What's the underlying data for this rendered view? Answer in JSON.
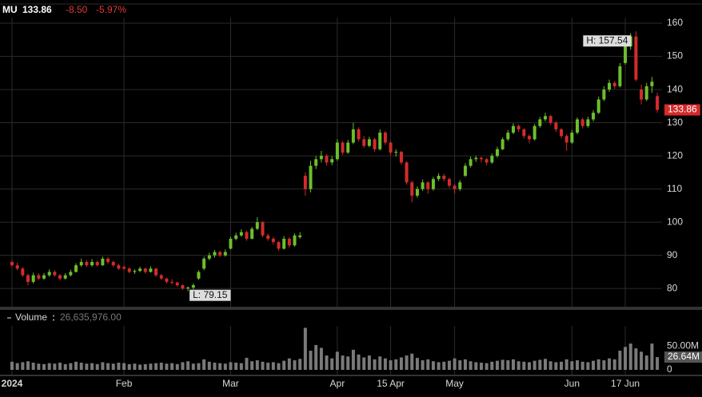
{
  "header": {
    "symbol": "MU",
    "price": "133.86",
    "change": "-8.50",
    "change_pct": "-5.97%"
  },
  "chart_data": [
    {
      "type": "candlestick",
      "categories": [
        "2024",
        null,
        null,
        null,
        null,
        null,
        null,
        null,
        null,
        null,
        null,
        null,
        null,
        null,
        null,
        null,
        null,
        null,
        null,
        null,
        null,
        "Feb",
        null,
        null,
        null,
        null,
        null,
        null,
        null,
        null,
        null,
        null,
        null,
        null,
        null,
        null,
        null,
        null,
        null,
        null,
        null,
        "Mar",
        null,
        null,
        null,
        null,
        null,
        null,
        null,
        null,
        null,
        null,
        null,
        null,
        null,
        null,
        null,
        null,
        null,
        null,
        null,
        "Apr",
        null,
        null,
        null,
        null,
        null,
        null,
        null,
        null,
        null,
        "15 Apr",
        null,
        null,
        null,
        null,
        null,
        null,
        null,
        null,
        null,
        null,
        null,
        "May",
        null,
        null,
        null,
        null,
        null,
        null,
        null,
        null,
        null,
        null,
        null,
        null,
        null,
        null,
        null,
        null,
        null,
        null,
        null,
        null,
        null,
        "Jun",
        null,
        null,
        null,
        null,
        null,
        null,
        null,
        null,
        null,
        "17 Jun",
        null,
        null,
        null,
        null,
        null,
        null
      ],
      "candles": [
        [
          88,
          88.5,
          86.5,
          87
        ],
        [
          87,
          87.8,
          85.5,
          86
        ],
        [
          86,
          86.5,
          83.5,
          84
        ],
        [
          84,
          84.5,
          81,
          82
        ],
        [
          82,
          84.8,
          81.5,
          84
        ],
        [
          84,
          84.6,
          82.5,
          83
        ],
        [
          83,
          84.7,
          82.6,
          84
        ],
        [
          84,
          85.8,
          83.5,
          85
        ],
        [
          85,
          85.5,
          83.6,
          84
        ],
        [
          84,
          84.4,
          82.5,
          83
        ],
        [
          83,
          84.6,
          82.7,
          84
        ],
        [
          84,
          85.7,
          83.6,
          85
        ],
        [
          85,
          87.6,
          84.8,
          87
        ],
        [
          87,
          89,
          86.5,
          88
        ],
        [
          88,
          88.6,
          86.5,
          87
        ],
        [
          87,
          88.9,
          86.6,
          88
        ],
        [
          88,
          88.4,
          86.6,
          87
        ],
        [
          87,
          89.6,
          86.8,
          89
        ],
        [
          89,
          89.5,
          87.4,
          88
        ],
        [
          88,
          88.4,
          86.5,
          87
        ],
        [
          87,
          87.5,
          85.6,
          86
        ],
        [
          86.5,
          87,
          85.5,
          86
        ],
        [
          86,
          86.4,
          84.6,
          85
        ],
        [
          85,
          85.8,
          84.4,
          85.3
        ],
        [
          85.3,
          86.6,
          84.9,
          86
        ],
        [
          86,
          86.3,
          84.5,
          85
        ],
        [
          85,
          86.7,
          84.8,
          86
        ],
        [
          86,
          86.2,
          83.5,
          84
        ],
        [
          84,
          84.4,
          82.6,
          83
        ],
        [
          83,
          83.3,
          81.5,
          82
        ],
        [
          82,
          82.8,
          81.2,
          81.8
        ],
        [
          81.8,
          82,
          80.5,
          81
        ],
        [
          81,
          81.3,
          79.6,
          80
        ],
        [
          80,
          80.6,
          79.15,
          80.3
        ],
        [
          80.3,
          81.5,
          79.8,
          81
        ],
        [
          83,
          85.5,
          82.6,
          85
        ],
        [
          86,
          89.6,
          85.5,
          89
        ],
        [
          89,
          90.8,
          88.5,
          90
        ],
        [
          90,
          91.6,
          89.3,
          91
        ],
        [
          91,
          91.4,
          89.5,
          90
        ],
        [
          90,
          91.8,
          89.6,
          91
        ],
        [
          92,
          95.6,
          91.8,
          95
        ],
        [
          95,
          96.8,
          94.5,
          96
        ],
        [
          96,
          97.9,
          95.6,
          97
        ],
        [
          97,
          97.4,
          94.4,
          95
        ],
        [
          95,
          98.6,
          94.8,
          98
        ],
        [
          98,
          101.5,
          97.6,
          100
        ],
        [
          100,
          100.3,
          95.5,
          96
        ],
        [
          96,
          96.5,
          94.4,
          95
        ],
        [
          95,
          95.6,
          93.2,
          94
        ],
        [
          94,
          94.3,
          91.4,
          92
        ],
        [
          92,
          95.8,
          91.7,
          95
        ],
        [
          95,
          95.4,
          92.3,
          93
        ],
        [
          93,
          96.6,
          92.6,
          96
        ],
        [
          95.5,
          97,
          95,
          96
        ],
        [
          114,
          115,
          108,
          110
        ],
        [
          110,
          118.5,
          109,
          117
        ],
        [
          117,
          120,
          116,
          119
        ],
        [
          119,
          121.5,
          118,
          120
        ],
        [
          120,
          120.5,
          117,
          118
        ],
        [
          118,
          120,
          117.2,
          119
        ],
        [
          119,
          125,
          118.5,
          124
        ],
        [
          124,
          124.5,
          120.3,
          121
        ],
        [
          121,
          124.8,
          120.6,
          124
        ],
        [
          124,
          130,
          123.5,
          128
        ],
        [
          128,
          128.6,
          124.3,
          125
        ],
        [
          125,
          126,
          122.4,
          123
        ],
        [
          123,
          125.8,
          122.6,
          125
        ],
        [
          125,
          125.4,
          121.3,
          122
        ],
        [
          122,
          128,
          121.6,
          127
        ],
        [
          127,
          127.5,
          123.3,
          124
        ],
        [
          124,
          124.4,
          120.2,
          121
        ],
        [
          121,
          122,
          119.8,
          121.2
        ],
        [
          121.2,
          121.5,
          117.3,
          118
        ],
        [
          118,
          118.4,
          111.3,
          112
        ],
        [
          112,
          112.5,
          106,
          108
        ],
        [
          108,
          110.8,
          107.4,
          110
        ],
        [
          110,
          112.9,
          109.4,
          112
        ],
        [
          112,
          112.4,
          108.6,
          110
        ],
        [
          110,
          113.7,
          109.5,
          113
        ],
        [
          113,
          114.8,
          112.4,
          114
        ],
        [
          114,
          114.6,
          112.3,
          113
        ],
        [
          113,
          113.4,
          110.3,
          111
        ],
        [
          111,
          111.5,
          108.6,
          110
        ],
        [
          110,
          112.7,
          109.4,
          112
        ],
        [
          114,
          117.8,
          113.6,
          117
        ],
        [
          117,
          119.8,
          116.5,
          119
        ],
        [
          119,
          120,
          118.2,
          119.4
        ],
        [
          119.4,
          119.8,
          118,
          119
        ],
        [
          119,
          119.4,
          117.2,
          118
        ],
        [
          118,
          120.7,
          117.6,
          120
        ],
        [
          120,
          122.8,
          119.5,
          122
        ],
        [
          122,
          125.6,
          121.7,
          125
        ],
        [
          125,
          127.8,
          124.5,
          127
        ],
        [
          127,
          129.8,
          126.5,
          129
        ],
        [
          129,
          129.5,
          127.2,
          128
        ],
        [
          128,
          128.4,
          125.2,
          126
        ],
        [
          126,
          126.5,
          123.8,
          125
        ],
        [
          125,
          129.6,
          124.6,
          129
        ],
        [
          129,
          131.7,
          128.5,
          131
        ],
        [
          131,
          133,
          130.4,
          132
        ],
        [
          132,
          132.4,
          129.3,
          130
        ],
        [
          130,
          130.5,
          127.2,
          128
        ],
        [
          128,
          128.4,
          125.3,
          126
        ],
        [
          126,
          126.5,
          121.5,
          124
        ],
        [
          124,
          127.8,
          123.6,
          127
        ],
        [
          127,
          131.6,
          126.5,
          131
        ],
        [
          131,
          131.5,
          128.3,
          129
        ],
        [
          129,
          131.8,
          128.5,
          131
        ],
        [
          131,
          133.8,
          130.4,
          133
        ],
        [
          133,
          137.9,
          132.6,
          137
        ],
        [
          137,
          141,
          136.5,
          140
        ],
        [
          140,
          143,
          139.3,
          142
        ],
        [
          142,
          142.6,
          140.2,
          141
        ],
        [
          141,
          148,
          140.6,
          147
        ],
        [
          148,
          154,
          147.5,
          153
        ],
        [
          153,
          157,
          152,
          156
        ],
        [
          156,
          157.54,
          142.5,
          143
        ],
        [
          140,
          141.5,
          135.5,
          137
        ],
        [
          137,
          142,
          136.5,
          141
        ],
        [
          141,
          143.8,
          139,
          142.36
        ],
        [
          138,
          139,
          133,
          133.86
        ]
      ],
      "up_color": "#6cbf2c",
      "down_color": "#d42b2b",
      "ylim": [
        74.5,
        161.7
      ],
      "yticks": [
        80,
        90,
        100,
        110,
        120,
        130,
        140,
        150,
        160
      ],
      "grid": true,
      "annotations": [
        {
          "label": "H: 157.54"
        },
        {
          "label": "L: 79.15"
        }
      ]
    },
    {
      "type": "bar",
      "title": "Volume",
      "readout": "26,635,976.00",
      "last_label": "26.64M",
      "color": "#7a7a7a",
      "values": [
        17000000,
        14000000,
        16000000,
        18000000,
        15000000,
        13000000,
        12000000,
        14000000,
        13000000,
        15000000,
        12000000,
        14000000,
        17000000,
        15000000,
        13000000,
        14000000,
        12000000,
        16000000,
        14000000,
        13000000,
        15000000,
        14000000,
        12000000,
        13000000,
        11000000,
        12000000,
        13000000,
        14000000,
        15000000,
        13000000,
        14000000,
        12000000,
        16000000,
        18000000,
        13000000,
        14000000,
        22000000,
        17000000,
        15000000,
        14000000,
        13000000,
        16000000,
        15000000,
        14000000,
        25000000,
        18000000,
        20000000,
        17000000,
        15000000,
        16000000,
        14000000,
        19000000,
        24000000,
        20000000,
        23000000,
        88000000,
        40000000,
        52000000,
        46000000,
        30000000,
        24000000,
        38000000,
        30000000,
        28000000,
        42000000,
        32000000,
        26000000,
        30000000,
        22000000,
        28000000,
        24000000,
        20000000,
        22000000,
        26000000,
        30000000,
        34000000,
        25000000,
        20000000,
        22000000,
        18000000,
        16000000,
        17000000,
        19000000,
        24000000,
        20000000,
        22000000,
        18000000,
        16000000,
        15000000,
        14000000,
        17000000,
        19000000,
        21000000,
        20000000,
        22000000,
        18000000,
        17000000,
        16000000,
        19000000,
        21000000,
        23000000,
        18000000,
        16000000,
        17000000,
        22000000,
        18000000,
        20000000,
        17000000,
        16000000,
        19000000,
        22000000,
        20000000,
        24000000,
        22000000,
        40000000,
        48000000,
        55000000,
        45000000,
        38000000,
        30000000,
        55000000,
        26635976
      ],
      "ylim": [
        0,
        92000000
      ],
      "yticks": [
        {
          "value": 50000000,
          "label": "50.00M"
        },
        0
      ]
    }
  ]
}
